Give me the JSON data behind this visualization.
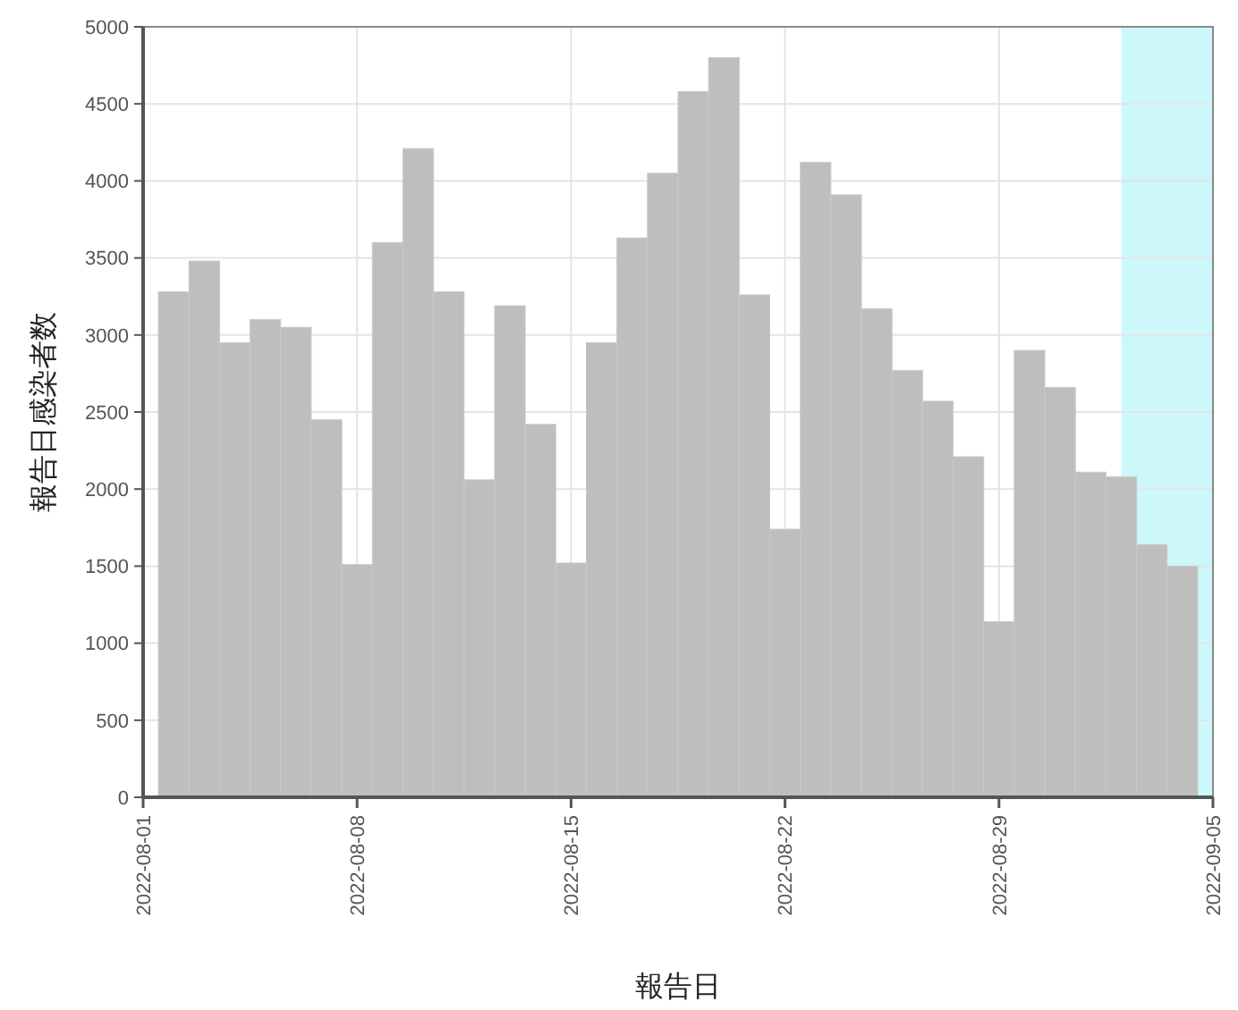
{
  "chart_data": {
    "type": "bar",
    "xlabel": "報告日",
    "ylabel": "報告日感染者数",
    "x": [
      "2022-08-02",
      "2022-08-03",
      "2022-08-04",
      "2022-08-05",
      "2022-08-06",
      "2022-08-07",
      "2022-08-08",
      "2022-08-09",
      "2022-08-10",
      "2022-08-11",
      "2022-08-12",
      "2022-08-13",
      "2022-08-14",
      "2022-08-15",
      "2022-08-16",
      "2022-08-17",
      "2022-08-18",
      "2022-08-19",
      "2022-08-20",
      "2022-08-21",
      "2022-08-22",
      "2022-08-23",
      "2022-08-24",
      "2022-08-25",
      "2022-08-26",
      "2022-08-27",
      "2022-08-28",
      "2022-08-29",
      "2022-08-30",
      "2022-08-31",
      "2022-09-01",
      "2022-09-02",
      "2022-09-03",
      "2022-09-04"
    ],
    "values": [
      3280,
      3480,
      2950,
      3100,
      3050,
      2450,
      1510,
      3600,
      4210,
      3280,
      2060,
      3190,
      2420,
      1520,
      2950,
      3630,
      4050,
      4580,
      4800,
      3260,
      1740,
      4120,
      3910,
      3170,
      2770,
      2570,
      2210,
      1140,
      2900,
      2660,
      2110,
      2080,
      1640,
      1500
    ],
    "color": "#bebebe",
    "xlim": [
      "2022-08-01",
      "2022-09-05"
    ],
    "xticks": [
      "2022-08-01",
      "2022-08-08",
      "2022-08-15",
      "2022-08-22",
      "2022-08-29",
      "2022-09-05"
    ],
    "ylim": [
      0,
      5000
    ],
    "yticks": [
      0,
      500,
      1000,
      1500,
      2000,
      2500,
      3000,
      3500,
      4000,
      4500,
      5000
    ],
    "grid": true,
    "bands": [
      {
        "axis": "x",
        "from": "2022-09-02",
        "to": "2022-09-05",
        "color": "#ccf8fc"
      }
    ]
  }
}
